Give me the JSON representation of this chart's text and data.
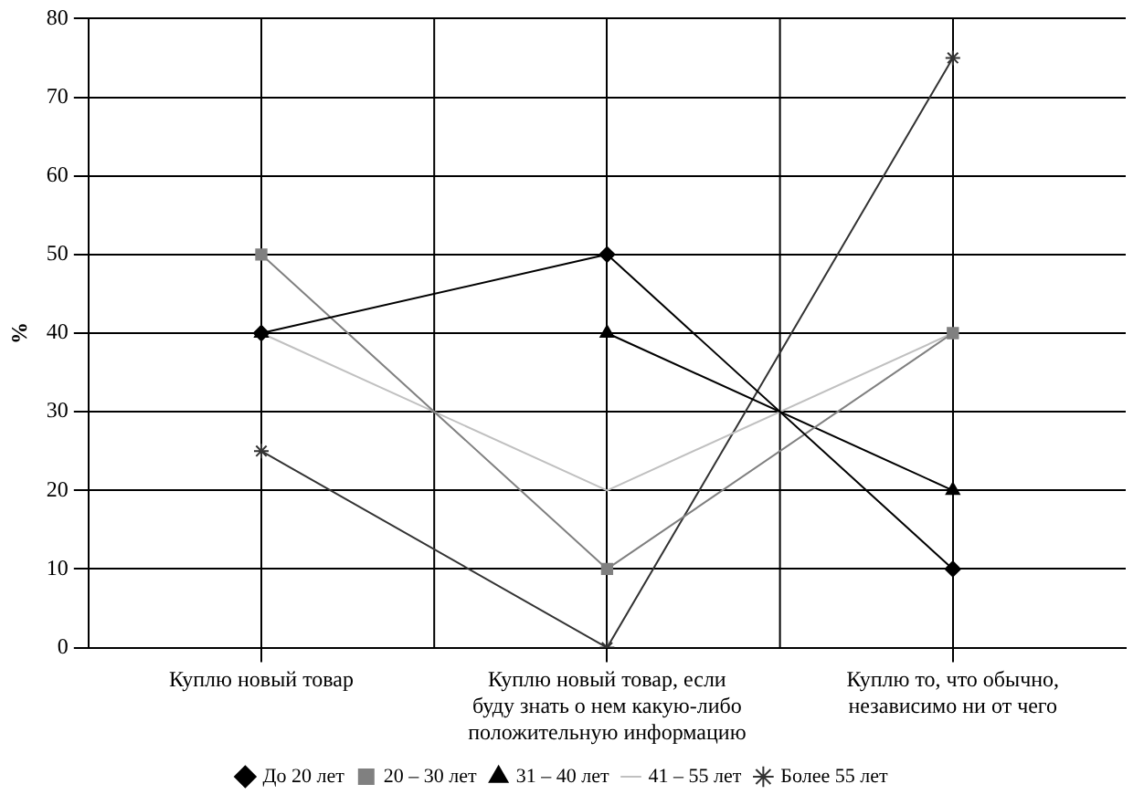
{
  "chart_data": {
    "type": "line",
    "ylabel": "%",
    "categories": [
      "Куплю новый товар",
      "Куплю новый товар, если\nбуду знать о нем какую-либо\nположительную информацию",
      "Куплю то, что обычно,\nнезависимо ни от чего"
    ],
    "series": [
      {
        "name": "До 20 лет",
        "color": "#000000",
        "marker": "diamond",
        "values": [
          40,
          50,
          10
        ]
      },
      {
        "name": "20 – 30 лет",
        "color": "#808080",
        "marker": "square",
        "values": [
          50,
          10,
          40
        ]
      },
      {
        "name": "31 – 40 лет",
        "color": "#000000",
        "marker": "triangle",
        "values": [
          40,
          40,
          20
        ]
      },
      {
        "name": "41 – 55 лет",
        "color": "#c0c0c0",
        "marker": "none",
        "values": [
          40,
          20,
          40
        ]
      },
      {
        "name": "Более 55 лет",
        "color": "#333333",
        "marker": "cross",
        "values": [
          25,
          0,
          75
        ]
      }
    ],
    "ylim": [
      0,
      80
    ],
    "yticks": [
      0,
      10,
      20,
      30,
      40,
      50,
      60,
      70,
      80
    ],
    "grid": true,
    "legend": "bottom"
  }
}
